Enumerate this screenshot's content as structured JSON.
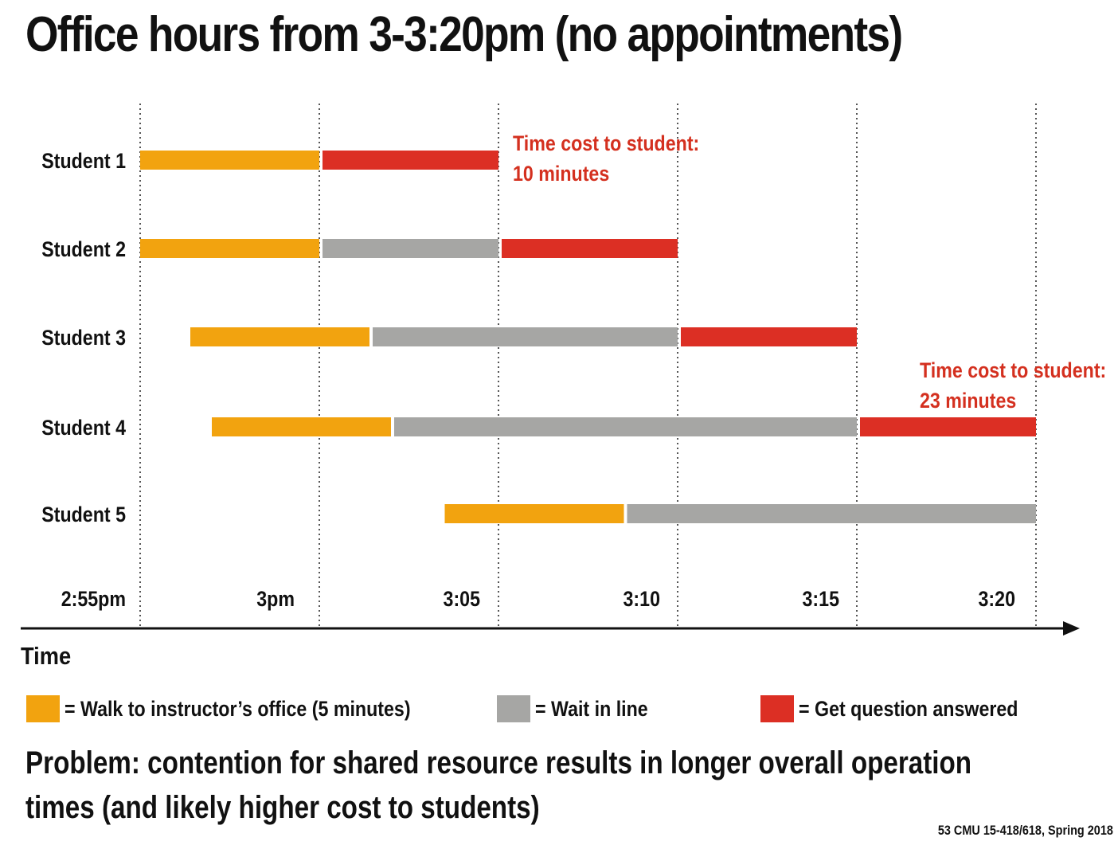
{
  "title": "Office hours from 3-3:20pm (no appointments)",
  "colors": {
    "walk": "#f2a30f",
    "wait": "#a6a6a4",
    "answer": "#dc2f24",
    "annotation": "#d4301f",
    "text": "#111111"
  },
  "chart_data": {
    "type": "timeline",
    "axis": {
      "label": "Time",
      "ticks": [
        "2:55pm",
        "3pm",
        "3:05",
        "3:10",
        "3:15",
        "3:20"
      ],
      "tick_minutes": [
        -5,
        0,
        5,
        10,
        15,
        20
      ]
    },
    "rows": [
      {
        "label": "Student 1",
        "segments": [
          {
            "kind": "walk",
            "start": -5,
            "end": 0
          },
          {
            "kind": "answer",
            "start": 0,
            "end": 5
          }
        ]
      },
      {
        "label": "Student 2",
        "segments": [
          {
            "kind": "walk",
            "start": -5,
            "end": 0
          },
          {
            "kind": "wait",
            "start": 0,
            "end": 5
          },
          {
            "kind": "answer",
            "start": 5,
            "end": 10
          }
        ]
      },
      {
        "label": "Student 3",
        "segments": [
          {
            "kind": "walk",
            "start": -3.6,
            "end": 1.4
          },
          {
            "kind": "wait",
            "start": 1.4,
            "end": 10
          },
          {
            "kind": "answer",
            "start": 10,
            "end": 15
          }
        ]
      },
      {
        "label": "Student 4",
        "segments": [
          {
            "kind": "walk",
            "start": -3,
            "end": 2
          },
          {
            "kind": "wait",
            "start": 2,
            "end": 15
          },
          {
            "kind": "answer",
            "start": 15,
            "end": 20
          }
        ]
      },
      {
        "label": "Student 5",
        "segments": [
          {
            "kind": "walk",
            "start": 3.5,
            "end": 8.5
          },
          {
            "kind": "wait",
            "start": 8.5,
            "end": 20
          }
        ]
      }
    ],
    "annotations": [
      {
        "row": 0,
        "lines": [
          "Time cost to student:",
          "10 minutes"
        ]
      },
      {
        "row": 3,
        "lines": [
          "Time cost to student:",
          "23 minutes"
        ]
      }
    ]
  },
  "legend": {
    "walk": "= Walk to instructor’s office (5 minutes)",
    "wait": "= Wait in line",
    "answer": "= Get question answered"
  },
  "problem": {
    "line1": "Problem: contention for shared resource results in longer overall operation",
    "line2": "times (and likely higher cost to students)"
  },
  "footer": "53 CMU 15-418/618, Spring 2018"
}
